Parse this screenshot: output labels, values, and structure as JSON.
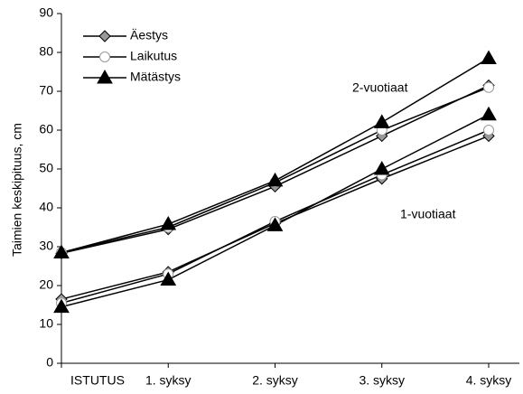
{
  "chart_data": {
    "type": "line",
    "categories": [
      "ISTUTUS",
      "1. syksy",
      "2. syksy",
      "3. syksy",
      "4. syksy"
    ],
    "ylabel": "Taimien keskipituus, cm",
    "ylim": [
      0,
      90
    ],
    "yticks": [
      0,
      10,
      20,
      30,
      40,
      50,
      60,
      70,
      80,
      90
    ],
    "groups": [
      "2-vuotiaat",
      "1-vuotiaat"
    ],
    "series": [
      {
        "name": "Äestys",
        "marker": "diamond",
        "color": "#999999",
        "values": [
          [
            28.3,
            34.5,
            45.5,
            58.5,
            71.5
          ],
          [
            16.5,
            23.5,
            36,
            47.5,
            58.5
          ]
        ]
      },
      {
        "name": "Laikutus",
        "marker": "circle",
        "color": "#ffffff",
        "values": [
          [
            28.5,
            35,
            46.5,
            60,
            71
          ],
          [
            15.5,
            23,
            36.5,
            48.5,
            60
          ]
        ]
      },
      {
        "name": "Mätästys",
        "marker": "triangle",
        "color": "#000000",
        "values": [
          [
            28.5,
            35.8,
            47,
            62,
            78.5
          ],
          [
            14.5,
            21.5,
            35.5,
            50,
            64
          ]
        ]
      }
    ]
  }
}
